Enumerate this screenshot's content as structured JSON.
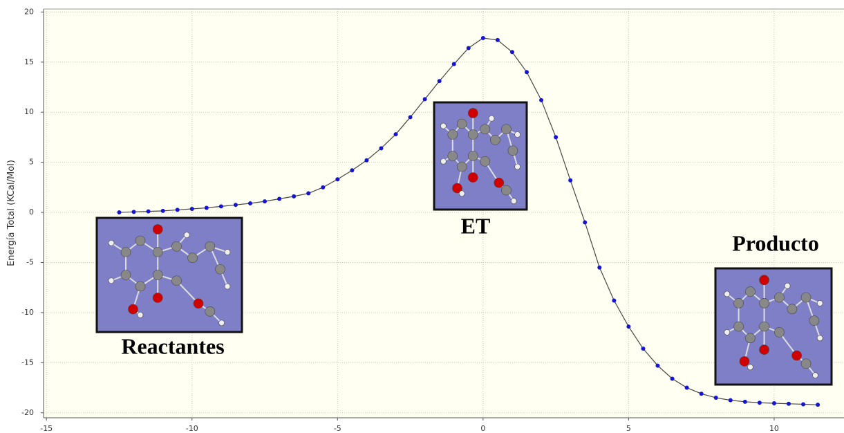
{
  "chart_data": {
    "type": "line",
    "y_label": "Energía Total  (KCal/Mol)",
    "x": [
      -12.5,
      -12,
      -11.5,
      -11,
      -10.5,
      -10,
      -9.5,
      -9,
      -8.5,
      -8,
      -7.5,
      -7,
      -6.5,
      -6,
      -5.5,
      -5,
      -4.5,
      -4,
      -3.5,
      -3,
      -2.5,
      -2,
      -1.5,
      -1,
      -0.5,
      0,
      0.5,
      1,
      1.5,
      2,
      2.5,
      3,
      3.5,
      4,
      4.5,
      5,
      5.5,
      6,
      6.5,
      7,
      7.5,
      8,
      8.5,
      9,
      9.5,
      10,
      10.5,
      11,
      11.5
    ],
    "series": [
      {
        "color": "#1414d2",
        "values": [
          0.0,
          0.05,
          0.1,
          0.15,
          0.25,
          0.35,
          0.45,
          0.6,
          0.75,
          0.9,
          1.1,
          1.35,
          1.6,
          1.9,
          2.5,
          3.3,
          4.2,
          5.2,
          6.4,
          7.8,
          9.5,
          11.3,
          13.1,
          14.8,
          16.4,
          17.4,
          17.2,
          16.0,
          14.0,
          11.2,
          7.5,
          3.2,
          -1.0,
          -5.5,
          -8.8,
          -11.4,
          -13.6,
          -15.3,
          -16.6,
          -17.5,
          -18.1,
          -18.5,
          -18.75,
          -18.9,
          -19.0,
          -19.05,
          -19.1,
          -19.15,
          -19.2
        ]
      }
    ],
    "xlim": [
      -15.1,
      12.4
    ],
    "ylim": [
      -20.5,
      20.3
    ],
    "xticks": [
      -15,
      -10,
      -5,
      0,
      5,
      10
    ],
    "yticks": [
      -20,
      -15,
      -10,
      -5,
      0,
      5,
      10,
      15,
      20
    ],
    "grid": true,
    "annotations": [
      "Reactantes",
      "ET",
      "Producto"
    ]
  }
}
